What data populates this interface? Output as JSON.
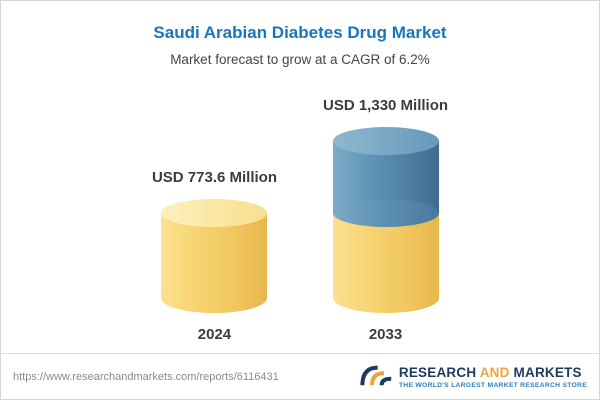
{
  "header": {
    "title": "Saudi Arabian Diabetes Drug Market",
    "subtitle": "Market forecast to grow at a CAGR of 6.2%"
  },
  "chart_data": {
    "type": "bar",
    "title": "Saudi Arabian Diabetes Drug Market",
    "subtitle": "Market forecast to grow at a CAGR of 6.2%",
    "cagr": "6.2%",
    "unit": "USD Million",
    "categories": [
      "2024",
      "2033"
    ],
    "values": [
      773.6,
      1330
    ],
    "value_labels": [
      "USD 773.6 Million",
      "USD 1,330 Million"
    ],
    "segments": [
      {
        "category": "2024",
        "base": 773.6,
        "growth": 0
      },
      {
        "category": "2033",
        "base": 773.6,
        "growth": 556.4
      }
    ],
    "bar_colors": {
      "base": "#F2CE68",
      "growth": "#4E86AD"
    },
    "legend": "none",
    "gridlines": false,
    "xlabel": "",
    "ylabel": ""
  },
  "footer": {
    "url": "https://www.researchandmarkets.com/reports/6116431",
    "logo": {
      "word1": "RESEARCH",
      "word2": "AND",
      "word3": "MARKETS",
      "tagline": "THE WORLD'S LARGEST MARKET RESEARCH STORE"
    }
  }
}
